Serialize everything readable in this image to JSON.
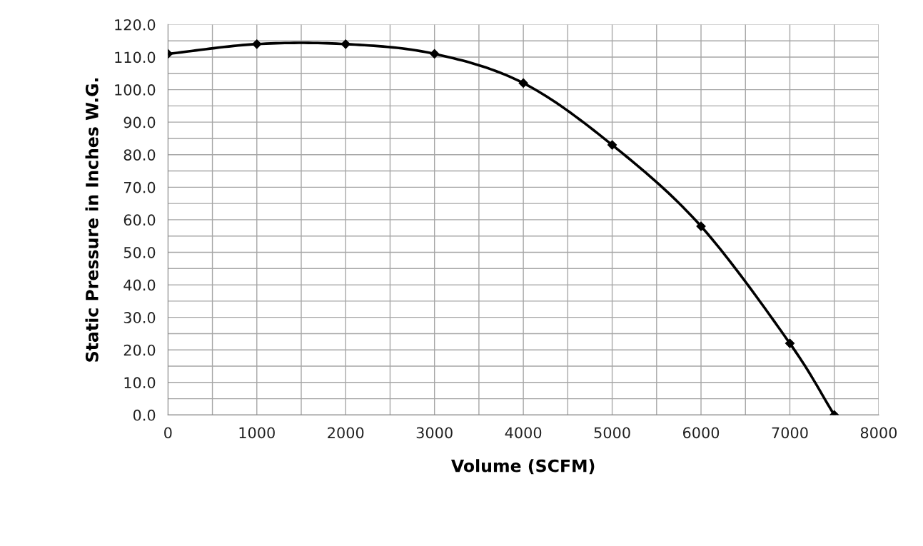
{
  "chart_data": {
    "type": "line",
    "xlabel": "Volume (SCFM)",
    "ylabel": "Static Pressure in Inches W.G.",
    "x": [
      0,
      1000,
      2000,
      3000,
      4000,
      5000,
      6000,
      7000,
      7500
    ],
    "series": [
      {
        "color": "#000000",
        "values": [
          111,
          114,
          114,
          111,
          102,
          83,
          58,
          22,
          0
        ]
      }
    ],
    "marker": "diamond",
    "grid": true,
    "legend": false,
    "xlim": [
      0,
      8000
    ],
    "ylim": [
      0,
      120
    ],
    "xticks": [
      0,
      {
        "value": 500,
        "label": null
      },
      1000,
      {
        "value": 1500,
        "label": null
      },
      2000,
      {
        "value": 2500,
        "label": null
      },
      3000,
      {
        "value": 3500,
        "label": null
      },
      4000,
      {
        "value": 4500,
        "label": null
      },
      5000,
      {
        "value": 5500,
        "label": null
      },
      6000,
      {
        "value": 6500,
        "label": null
      },
      7000,
      {
        "value": 7500,
        "label": null
      },
      8000
    ],
    "yticks": [
      {
        "value": 0,
        "label": "0.0"
      },
      {
        "value": 5,
        "label": null
      },
      {
        "value": 10,
        "label": "10.0"
      },
      {
        "value": 15,
        "label": null
      },
      {
        "value": 20,
        "label": "20.0"
      },
      {
        "value": 25,
        "label": null
      },
      {
        "value": 30,
        "label": "30.0"
      },
      {
        "value": 35,
        "label": null
      },
      {
        "value": 40,
        "label": "40.0"
      },
      {
        "value": 45,
        "label": null
      },
      {
        "value": 50,
        "label": "50.0"
      },
      {
        "value": 55,
        "label": null
      },
      {
        "value": 60,
        "label": "60.0"
      },
      {
        "value": 65,
        "label": null
      },
      {
        "value": 70,
        "label": "70.0"
      },
      {
        "value": 75,
        "label": null
      },
      {
        "value": 80,
        "label": "80.0"
      },
      {
        "value": 85,
        "label": null
      },
      {
        "value": 90,
        "label": "90.0"
      },
      {
        "value": 95,
        "label": null
      },
      {
        "value": 100,
        "label": "100.0"
      },
      {
        "value": 105,
        "label": null
      },
      {
        "value": 110,
        "label": "110.0"
      },
      {
        "value": 115,
        "label": null
      },
      {
        "value": 120,
        "label": "120.0"
      }
    ]
  }
}
